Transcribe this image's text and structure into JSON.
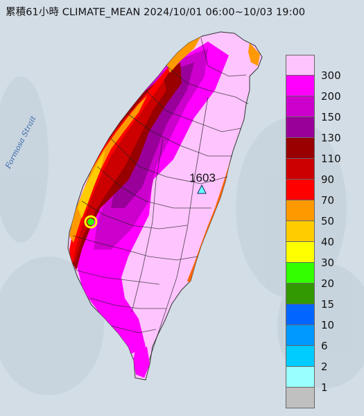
{
  "title": "累積61小時 CLIMATE_MEAN 2024/10/01 06:00~10/03 19:00",
  "sea_label": "Formosa Strait",
  "max_station": {
    "value": "1603"
  },
  "legend": [
    {
      "label": "300",
      "color": "#fdc4fd"
    },
    {
      "label": "200",
      "color": "#ff00ff"
    },
    {
      "label": "150",
      "color": "#cc00cc"
    },
    {
      "label": "130",
      "color": "#990099"
    },
    {
      "label": "110",
      "color": "#990000"
    },
    {
      "label": "90",
      "color": "#cc0000"
    },
    {
      "label": "70",
      "color": "#ff0000"
    },
    {
      "label": "50",
      "color": "#ff9900"
    },
    {
      "label": "40",
      "color": "#ffcc00"
    },
    {
      "label": "30",
      "color": "#ffff00"
    },
    {
      "label": "20",
      "color": "#33ff00"
    },
    {
      "label": "15",
      "color": "#339900"
    },
    {
      "label": "10",
      "color": "#0066ff"
    },
    {
      "label": "6",
      "color": "#0099ff"
    },
    {
      "label": "2",
      "color": "#00ccff"
    },
    {
      "label": "1",
      "color": "#99ffff"
    },
    {
      "label": "",
      "color": "#c0c0c0"
    }
  ]
}
